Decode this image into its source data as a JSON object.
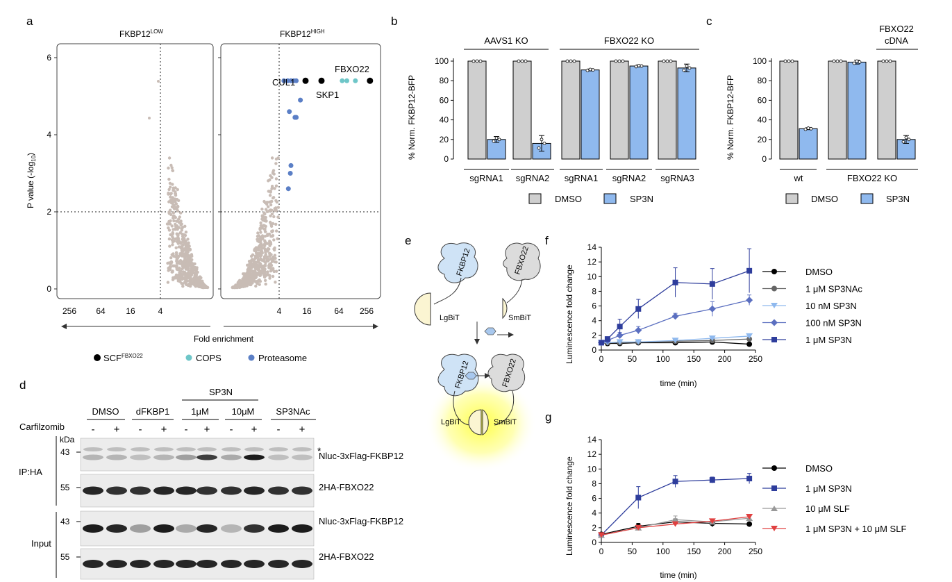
{
  "panel_letters": {
    "a": "a",
    "b": "b",
    "c": "c",
    "d": "d",
    "e": "e",
    "f": "f",
    "g": "g"
  },
  "panel_a": {
    "left_title_main": "FKBP12",
    "left_title_sup": "LOW",
    "right_title_main": "FKBP12",
    "right_title_sup": "HIGH",
    "ylabel_main": "P value (-log",
    "ylabel_sub": "10",
    "ylabel_end": ")",
    "yticks": [
      "0",
      "2",
      "4",
      "6"
    ],
    "xticks_left": [
      "256",
      "64",
      "16",
      "4"
    ],
    "xticks_right": [
      "4",
      "16",
      "64",
      "256"
    ],
    "xlabel": "Fold enrichment",
    "annotations": {
      "fbxo22": "FBXO22",
      "cul1": "CUL1",
      "skp1": "SKP1"
    },
    "legend": {
      "scf_main": "SCF",
      "scf_sup": "FBXO22",
      "cops": "COPS",
      "proteasome": "Proteasome"
    },
    "colors": {
      "scf": "#000000",
      "cops": "#6ec6c8",
      "proteasome": "#5b7fc6",
      "background": "#c8bcb5"
    }
  },
  "panel_b": {
    "ylabel": "% Norm. FKBP12-BFP",
    "yticks": [
      "0",
      "20",
      "40",
      "60",
      "80",
      "100"
    ],
    "group_labels": {
      "aavs1": "AAVS1 KO",
      "fbxo22": "FBXO22 KO"
    },
    "xlabels": [
      "sgRNA1",
      "sgRNA2",
      "sgRNA1",
      "sgRNA2",
      "sgRNA3"
    ],
    "legend": {
      "dmso": "DMSO",
      "sp3n": "SP3N"
    }
  },
  "panel_c": {
    "ylabel": "% Norm. FKBP12-BFP",
    "yticks": [
      "0",
      "20",
      "40",
      "60",
      "80",
      "100"
    ],
    "group_label_line1": "FBXO22",
    "group_label_line2": "cDNA",
    "xlabels": {
      "wt": "wt",
      "ko": "FBXO22 KO"
    },
    "legend": {
      "dmso": "DMSO",
      "sp3n": "SP3N"
    }
  },
  "panel_d": {
    "sp3n_header": "SP3N",
    "conditions": [
      "DMSO",
      "dFKBP1",
      "1μM",
      "10μM",
      "SP3NAc"
    ],
    "carfilzomib_label": "Carfilzomib",
    "signs": [
      "-",
      "+",
      "-",
      "+",
      "-",
      "+",
      "-",
      "+",
      "-",
      "+"
    ],
    "kda": "kDa",
    "mw": [
      "43",
      "55",
      "43",
      "55"
    ],
    "ip_label": "IP:HA",
    "input_label": "Input",
    "star": "*",
    "band_labels": [
      "Nluc-3xFlag-FKBP12",
      "2HA-FBXO22",
      "Nluc-3xFlag-FKBP12",
      "2HA-FBXO22"
    ]
  },
  "panel_e": {
    "fkbp12": "FKBP12",
    "fbxo22": "FBXO22",
    "lgbit": "LgBiT",
    "smbit": "SmBiT"
  },
  "panel_f": {
    "ylabel": "Luminescence fold change",
    "xlabel": "time (min)",
    "yticks": [
      "0",
      "2",
      "4",
      "6",
      "8",
      "10",
      "12",
      "14"
    ],
    "xticks": [
      "0",
      "50",
      "100",
      "150",
      "200",
      "250"
    ],
    "legend": [
      "DMSO",
      "1 μM SP3NAc",
      "10 nM SP3N",
      "100 nM SP3N",
      "1 μM SP3N"
    ]
  },
  "panel_g": {
    "ylabel": "Luminescence fold change",
    "xlabel": "time (min)",
    "yticks": [
      "0",
      "2",
      "4",
      "6",
      "8",
      "10",
      "12",
      "14"
    ],
    "xticks": [
      "0",
      "50",
      "100",
      "150",
      "200",
      "250"
    ],
    "legend": [
      "DMSO",
      "1 μM SP3N",
      "10 μM SLF",
      "1 μM SP3N + 10 μM SLF"
    ]
  },
  "chart_data": [
    {
      "type": "scatter",
      "panel": "a-right",
      "highlight": [
        {
          "series": "SCF",
          "points": [
            [
              14,
              5.4
            ],
            [
              30,
              5.4
            ],
            [
              300,
              5.4
            ]
          ]
        },
        {
          "series": "COPS",
          "points": [
            [
              80,
              5.4
            ],
            [
              100,
              5.4
            ],
            [
              150,
              5.4
            ]
          ]
        },
        {
          "series": "Proteasome",
          "points": [
            [
              5,
              5.4
            ],
            [
              6,
              5.4
            ],
            [
              7,
              5.4
            ],
            [
              8,
              5.4
            ],
            [
              9,
              5.4
            ],
            [
              11,
              4.9
            ],
            [
              6.5,
              4.6
            ],
            [
              8.5,
              4.45
            ],
            [
              9,
              4.45
            ],
            [
              7,
              3.2
            ],
            [
              6.8,
              3.0
            ],
            [
              6.2,
              2.6
            ]
          ]
        }
      ],
      "ylim": [
        0,
        6.3
      ]
    },
    {
      "type": "bar",
      "panel": "b",
      "categories": [
        "AAVS1 sgRNA1",
        "AAVS1 sgRNA2",
        "FBXO22 sgRNA1",
        "FBXO22 sgRNA2",
        "FBXO22 sgRNA3"
      ],
      "series": [
        {
          "name": "DMSO",
          "values": [
            100,
            100,
            100,
            100,
            100
          ]
        },
        {
          "name": "SP3N",
          "values": [
            20,
            16,
            91,
            95,
            93
          ]
        }
      ],
      "ylim": [
        0,
        110
      ]
    },
    {
      "type": "bar",
      "panel": "c",
      "categories": [
        "wt",
        "FBXO22 KO",
        "FBXO22 KO + FBXO22 cDNA"
      ],
      "series": [
        {
          "name": "DMSO",
          "values": [
            100,
            100,
            100
          ]
        },
        {
          "name": "SP3N",
          "values": [
            31,
            99,
            20
          ]
        }
      ],
      "ylim": [
        0,
        110
      ]
    },
    {
      "type": "line",
      "panel": "f",
      "x": [
        0,
        10,
        30,
        60,
        120,
        180,
        240
      ],
      "xlim": [
        0,
        250
      ],
      "ylim": [
        0,
        14
      ],
      "series": [
        {
          "name": "DMSO",
          "values": [
            1.0,
            0.9,
            0.9,
            1.0,
            1.0,
            1.1,
            0.8
          ]
        },
        {
          "name": "1 μM SP3NAc",
          "values": [
            1.0,
            1.0,
            1.0,
            1.1,
            1.2,
            1.3,
            1.5
          ]
        },
        {
          "name": "10 nM SP3N",
          "values": [
            1.0,
            1.0,
            1.1,
            1.1,
            1.3,
            1.6,
            1.9
          ]
        },
        {
          "name": "100 nM SP3N",
          "values": [
            1.0,
            1.3,
            2.0,
            2.7,
            4.6,
            5.6,
            6.8
          ]
        },
        {
          "name": "1 μM SP3N",
          "values": [
            1.0,
            1.5,
            3.2,
            5.6,
            9.2,
            9.0,
            10.8
          ]
        }
      ]
    },
    {
      "type": "line",
      "panel": "g",
      "x": [
        0,
        60,
        120,
        180,
        240
      ],
      "xlim": [
        0,
        250
      ],
      "ylim": [
        0,
        14
      ],
      "series": [
        {
          "name": "DMSO",
          "values": [
            1.1,
            2.2,
            2.8,
            2.6,
            2.5
          ]
        },
        {
          "name": "1 μM SP3N",
          "values": [
            1.0,
            6.1,
            8.3,
            8.5,
            8.7
          ]
        },
        {
          "name": "10 μM SLF",
          "values": [
            1.0,
            2.0,
            3.1,
            2.8,
            3.3
          ]
        },
        {
          "name": "1 μM SP3N + 10 μM SLF",
          "values": [
            1.0,
            2.0,
            2.5,
            2.9,
            3.5
          ]
        }
      ]
    }
  ]
}
